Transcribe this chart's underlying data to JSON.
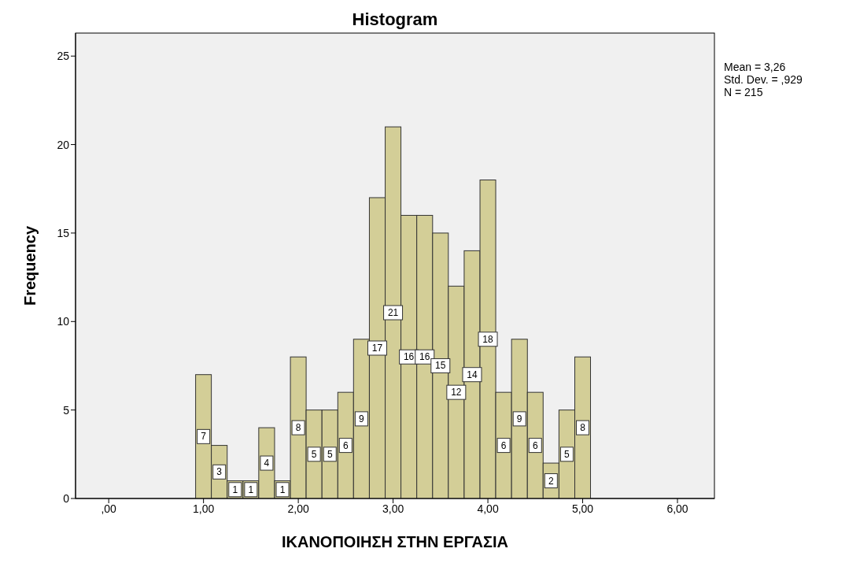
{
  "chart_data": {
    "type": "histogram",
    "title": "Histogram",
    "xlabel": "ΙΚΑΝΟΠΟΙΗΣΗ ΣΤΗΝ ΕΡΓΑΣΙΑ",
    "ylabel": "Frequency",
    "bins": [
      0.917,
      1.083,
      1.25,
      1.417,
      1.583,
      1.75,
      1.917,
      2.083,
      2.25,
      2.417,
      2.583,
      2.75,
      2.917,
      3.083,
      3.25,
      3.417,
      3.583,
      3.75,
      3.917,
      4.083,
      4.25,
      4.417,
      4.583,
      4.75,
      4.917,
      5.083
    ],
    "values": [
      7,
      3,
      1,
      1,
      4,
      1,
      8,
      5,
      5,
      6,
      9,
      17,
      21,
      16,
      16,
      15,
      12,
      14,
      18,
      6,
      9,
      6,
      2,
      5,
      8
    ],
    "color": "#d3ce97",
    "data_labels": true,
    "grid": false,
    "xlim": [
      -0.35,
      6.39
    ],
    "ylim": [
      0,
      26.3
    ],
    "xticks": [
      {
        "value": 0,
        "label": ",00"
      },
      {
        "value": 1,
        "label": "1,00"
      },
      {
        "value": 2,
        "label": "2,00"
      },
      {
        "value": 3,
        "label": "3,00"
      },
      {
        "value": 4,
        "label": "4,00"
      },
      {
        "value": 5,
        "label": "5,00"
      },
      {
        "value": 6,
        "label": "6,00"
      }
    ],
    "yticks": [
      0,
      5,
      10,
      15,
      20,
      25
    ],
    "annotations": [
      "Mean = 3,26",
      "Std. Dev. = ,929",
      "N = 215"
    ]
  }
}
